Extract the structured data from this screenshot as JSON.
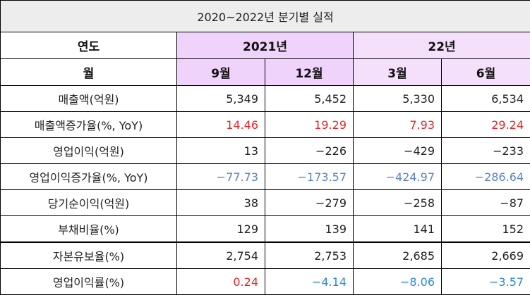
{
  "title": "2020~2022년 분기별 실적",
  "header": {
    "year_label": "연도",
    "month_label": "월",
    "years": [
      "2021년",
      "22년"
    ],
    "months": [
      "9월",
      "12월",
      "3월",
      "6월"
    ]
  },
  "rows": [
    {
      "label": "매출액(억원)",
      "values": [
        "5,349",
        "5,452",
        "5,330",
        "6,534"
      ],
      "colors": [
        "",
        "",
        "",
        ""
      ]
    },
    {
      "label": "매출액증가율(%, YoY)",
      "values": [
        "14.46",
        "19.29",
        "7.93",
        "29.24"
      ],
      "colors": [
        "red",
        "red",
        "red",
        "red"
      ]
    },
    {
      "label": "영업이익(억원)",
      "values": [
        "13",
        "−226",
        "−429",
        "−233"
      ],
      "colors": [
        "",
        "",
        "",
        ""
      ]
    },
    {
      "label": "영업이익증가율(%, YoY)",
      "values": [
        "−77.73",
        "−173.57",
        "−424.97",
        "−286.64"
      ],
      "colors": [
        "blue",
        "blue",
        "blue",
        "blue"
      ]
    },
    {
      "label": "당기순이익(억원)",
      "values": [
        "38",
        "−279",
        "−258",
        "−87"
      ],
      "colors": [
        "",
        "",
        "",
        ""
      ]
    },
    {
      "label": "부채비율(%)",
      "values": [
        "129",
        "139",
        "141",
        "152"
      ],
      "colors": [
        "",
        "",
        "",
        ""
      ]
    },
    {
      "label": "자본유보율(%)",
      "values": [
        "2,754",
        "2,753",
        "2,685",
        "2,669"
      ],
      "colors": [
        "",
        "",
        "",
        ""
      ]
    },
    {
      "label": "영업이익률(%)",
      "values": [
        "0.24",
        "−4.14",
        "−8.06",
        "−3.57"
      ],
      "colors": [
        "red",
        "cyan",
        "cyan",
        "cyan"
      ]
    }
  ],
  "colors": {
    "title_bg": "#ededed",
    "year2021_bg": "#efd3fb",
    "year22_bg": "#f5e0fc",
    "positive": "#e8232b",
    "negative_growth": "#5a82c4",
    "negative_margin": "#2b8ad0"
  }
}
